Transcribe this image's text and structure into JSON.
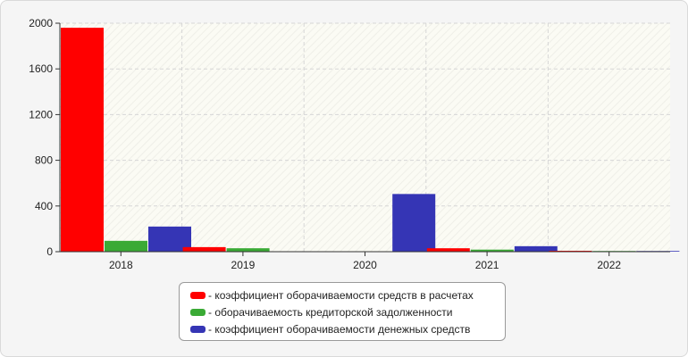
{
  "chart_data": {
    "type": "bar",
    "categories": [
      "2018",
      "2019",
      "2020",
      "2021",
      "2022"
    ],
    "series": [
      {
        "name": "- коэффициент оборачиваемости средств в расчетах",
        "color": "#ff0000",
        "values": [
          1960,
          40,
          0,
          30,
          8
        ]
      },
      {
        "name": "- оборачиваемость кредиторской задолженности",
        "color": "#3aaa35",
        "values": [
          95,
          30,
          0,
          18,
          6
        ]
      },
      {
        "name": "- коэффициент оборачиваемости денежных средств",
        "color": "#3535b5",
        "values": [
          220,
          0,
          505,
          48,
          6
        ]
      }
    ],
    "yticks": [
      "0",
      "400",
      "800",
      "1200",
      "1600",
      "2000"
    ],
    "ylim": [
      0,
      2000
    ],
    "grid": true,
    "legend_position": "bottom"
  }
}
